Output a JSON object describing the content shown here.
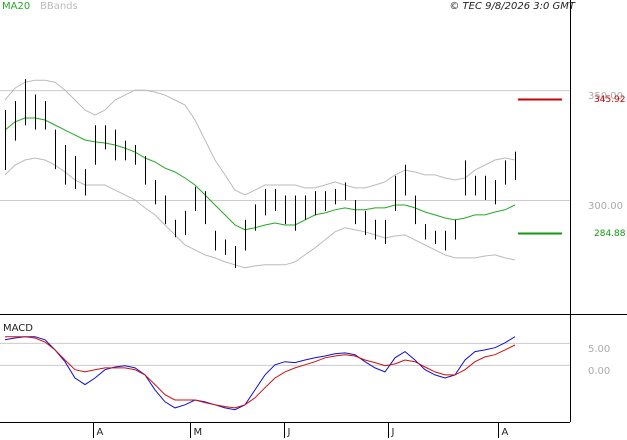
{
  "chart_data": [
    {
      "type": "ohlc",
      "credit": "© TEC 9/8/2026 3:0 GMT",
      "xlim": [
        -0.5,
        56.5
      ],
      "ylim": [
        249,
        391
      ],
      "yticks": [
        {
          "value": 350,
          "label": "350.00"
        },
        {
          "value": 300,
          "label": "300.00"
        }
      ],
      "grid": true,
      "bar_color": "#000000",
      "high": [
        340.9,
        345,
        355,
        348,
        345,
        332,
        325,
        320,
        314,
        334,
        334,
        332,
        327,
        325,
        320,
        309,
        302,
        291,
        295,
        306,
        304,
        286,
        282,
        279,
        291,
        298,
        305,
        305,
        302,
        302,
        302,
        304,
        304,
        305,
        308,
        300,
        295,
        291,
        291,
        311,
        316,
        302,
        289,
        286,
        286,
        291,
        318,
        311,
        311,
        309,
        318,
        322
      ],
      "low": [
        313.6,
        327,
        334,
        332,
        332,
        314,
        307,
        305,
        302,
        316,
        323,
        318,
        318,
        316,
        307,
        298,
        289,
        283,
        284,
        295,
        289,
        277,
        275,
        269,
        277,
        286,
        293,
        295,
        289,
        286,
        291,
        293,
        295,
        298,
        300,
        289,
        284,
        282,
        280,
        295,
        302,
        289,
        282,
        280,
        277,
        282,
        302,
        302,
        300,
        298,
        307,
        309
      ],
      "series": [
        {
          "name": "MA20",
          "color": "#22aa22",
          "values": [
            331.8,
            335.5,
            337.3,
            337.3,
            336.4,
            334.1,
            331.8,
            329.5,
            327.3,
            326.4,
            325.9,
            325,
            323.6,
            321.8,
            319.1,
            317.3,
            314.5,
            312.7,
            310,
            306.8,
            302.3,
            297.7,
            293.2,
            288.6,
            286.4,
            287.3,
            288.6,
            289.5,
            288.6,
            288.6,
            290.9,
            293.2,
            294.1,
            295.5,
            296.4,
            295.5,
            295.5,
            296.4,
            296.4,
            297.7,
            297.7,
            296.4,
            294.5,
            293.2,
            291.8,
            290.9,
            291.8,
            293.2,
            293.2,
            294.5,
            295.5,
            297.7
          ]
        },
        {
          "name": "BBands",
          "color": "#bbbbbb",
          "upper": [
            345.5,
            350.9,
            353.6,
            354.5,
            354.5,
            353.6,
            350,
            345.5,
            340.9,
            338.6,
            340.9,
            345.5,
            347.7,
            350,
            350,
            349.1,
            347.7,
            345.5,
            343.2,
            336.4,
            327.3,
            318.2,
            311.4,
            304.5,
            302.3,
            304.5,
            306.8,
            306.8,
            306.8,
            306.8,
            305.5,
            305.5,
            306.8,
            308.2,
            306.8,
            305.5,
            305.5,
            306.8,
            308.2,
            311.4,
            313.6,
            312.7,
            311.4,
            311.4,
            310,
            309.1,
            310,
            313.6,
            315.9,
            318.2,
            319.1,
            318.2
          ],
          "lower": [
            311.4,
            315.9,
            318.2,
            319.1,
            318.2,
            315.9,
            312.7,
            309.1,
            306.8,
            306.8,
            306.8,
            304.5,
            302.3,
            300,
            296.4,
            293.2,
            288.6,
            284.1,
            279.5,
            277.3,
            275,
            273.6,
            271.8,
            270.5,
            269.1,
            270,
            270.5,
            270.5,
            270.5,
            271.8,
            275,
            278.2,
            281.8,
            285.5,
            287.3,
            286.4,
            285.5,
            284.1,
            282.7,
            283.6,
            284.1,
            281.8,
            279.5,
            277.3,
            275,
            273.6,
            273.6,
            273.6,
            274.5,
            275,
            273.6,
            272.7
          ]
        }
      ],
      "levels": [
        {
          "value": 345.92,
          "label": "345.92",
          "color": "#cc0000"
        },
        {
          "value": 284.88,
          "label": "284.88",
          "color": "#119911"
        }
      ]
    },
    {
      "type": "line",
      "title": "MACD",
      "ylim": [
        -13,
        11.1
      ],
      "yticks": [
        {
          "value": 5,
          "label": "5.00"
        },
        {
          "value": 0,
          "label": "0.00"
        }
      ],
      "grid": true,
      "xticks": [
        {
          "value": 8.8,
          "label": "A"
        },
        {
          "value": 18.5,
          "label": "M"
        },
        {
          "value": 27.9,
          "label": "J"
        },
        {
          "value": 38.3,
          "label": "J"
        },
        {
          "value": 49.3,
          "label": "A"
        }
      ],
      "series": [
        {
          "color": "#1010cc",
          "values": [
            5.7,
            6.1,
            6.4,
            6.4,
            5.7,
            3.4,
            0.7,
            -3,
            -4.5,
            -3,
            -1.1,
            -0.5,
            -0.2,
            -0.7,
            -2.3,
            -5.7,
            -8.4,
            -9.8,
            -9.1,
            -8,
            -8.4,
            -9.1,
            -9.8,
            -10.2,
            -9.1,
            -5.7,
            -2.3,
            0,
            0.7,
            0.5,
            1.1,
            1.6,
            2,
            2.5,
            2.7,
            2.3,
            0.7,
            -0.7,
            -1.6,
            1.6,
            3,
            1.1,
            -1.1,
            -2.3,
            -3,
            -2.3,
            1.1,
            3,
            3.4,
            3.9,
            5,
            6.4
          ]
        },
        {
          "color": "#cc1010",
          "values": [
            6.4,
            6.4,
            6.4,
            6.1,
            5.2,
            3.4,
            1.1,
            -1.1,
            -1.6,
            -1.1,
            -0.7,
            -0.7,
            -0.7,
            -1.1,
            -2.3,
            -4.5,
            -6.8,
            -8,
            -8,
            -8,
            -8.6,
            -9.1,
            -9.5,
            -9.8,
            -9.1,
            -7.5,
            -5.2,
            -3,
            -1.6,
            -0.7,
            0,
            0.7,
            1.6,
            2,
            2.3,
            2,
            1.1,
            0.5,
            -0.2,
            0.2,
            1.1,
            0.7,
            -0.5,
            -1.6,
            -2.3,
            -2.3,
            -1.1,
            0.7,
            1.8,
            2.3,
            3.4,
            4.5
          ]
        }
      ]
    }
  ]
}
